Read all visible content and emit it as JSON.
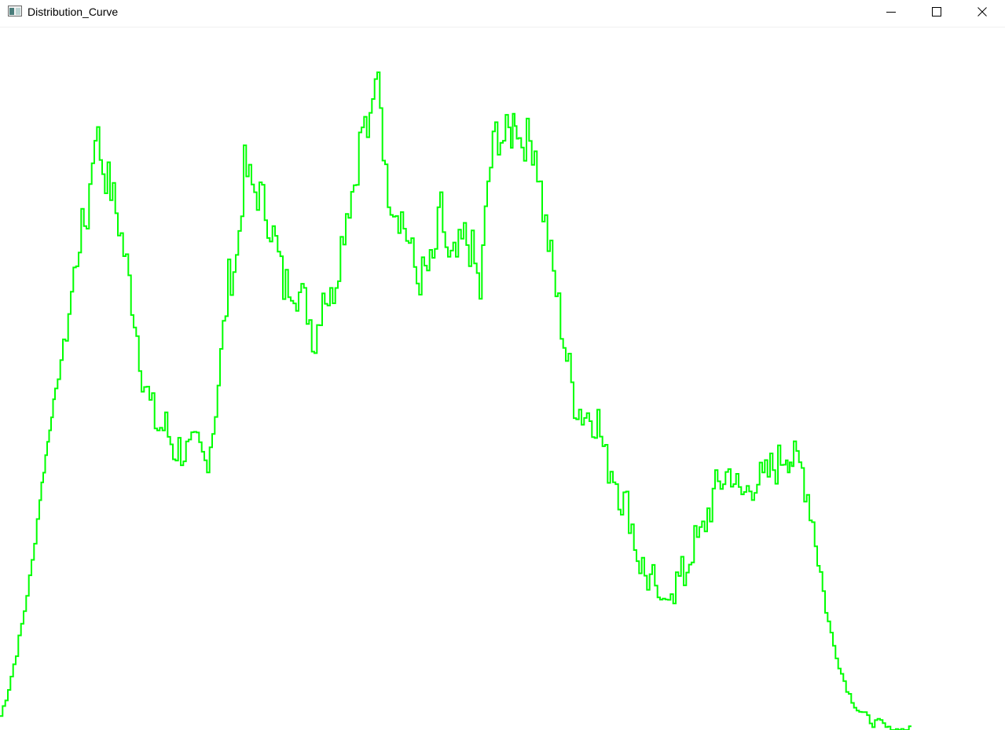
{
  "window": {
    "title": "Distribution_Curve",
    "icon": "app-window-icon",
    "controls": {
      "minimize_icon": "minimize-icon",
      "maximize_icon": "maximize-icon",
      "close_icon": "close-icon"
    }
  },
  "colors": {
    "curve": "#00ff00",
    "background": "#ffffff"
  },
  "chart_data": {
    "type": "line",
    "grid": false,
    "legend": "none",
    "title": "",
    "xlabel": "",
    "ylabel": "",
    "x": [
      0,
      10,
      20,
      30,
      40,
      50,
      55,
      60,
      65,
      70,
      80,
      90,
      100,
      110,
      120,
      130,
      140,
      150,
      160,
      170,
      180,
      190,
      200,
      210,
      220,
      230,
      240,
      250,
      260,
      270,
      280,
      290,
      300,
      310,
      320,
      330,
      340,
      350,
      360,
      370,
      380,
      390,
      400,
      410,
      420,
      430,
      440,
      450,
      460,
      470,
      480,
      490,
      500,
      510,
      520,
      530,
      540,
      550,
      560,
      570,
      580,
      590,
      600,
      610,
      620,
      630,
      640,
      650,
      655,
      660,
      670,
      680,
      690,
      700,
      710,
      720,
      730,
      740,
      750,
      760,
      770,
      780,
      790,
      800,
      810,
      820,
      830,
      840,
      850,
      860,
      870,
      880,
      890,
      900,
      910,
      920,
      930,
      940,
      950,
      960,
      970,
      980,
      990,
      1000,
      1005,
      1010,
      1020,
      1030,
      1040,
      1050,
      1060,
      1070,
      1080,
      1090,
      1100,
      1110,
      1120,
      1130,
      1140,
      1150,
      1160
    ],
    "y": [
      2,
      6,
      11,
      17,
      24,
      33,
      37,
      41,
      45,
      48,
      55,
      62,
      70,
      73,
      86,
      80,
      77,
      72,
      66,
      59,
      51,
      46,
      43,
      43,
      40,
      40,
      39,
      40,
      38,
      43,
      53,
      64,
      67,
      80,
      77,
      76,
      73,
      69,
      63,
      64,
      62,
      60,
      55,
      63,
      61,
      67,
      74,
      78,
      86,
      85,
      95,
      78,
      75,
      73,
      69,
      64,
      65,
      66,
      74,
      66,
      67,
      70,
      68,
      62,
      78,
      85,
      84,
      85,
      88,
      84,
      84,
      83,
      74,
      67,
      60,
      53,
      47,
      45,
      45,
      44,
      38,
      37,
      33,
      31,
      25,
      22,
      21,
      18,
      19,
      21,
      22,
      26,
      27,
      31,
      34,
      36,
      37,
      33,
      34,
      36,
      35,
      37,
      38,
      40,
      39,
      38,
      37,
      32,
      25,
      17,
      12,
      8,
      5,
      3,
      2,
      1,
      1,
      0,
      0,
      0,
      0
    ],
    "xlim": [
      0,
      1279
    ],
    "ylim": [
      0,
      100
    ]
  }
}
